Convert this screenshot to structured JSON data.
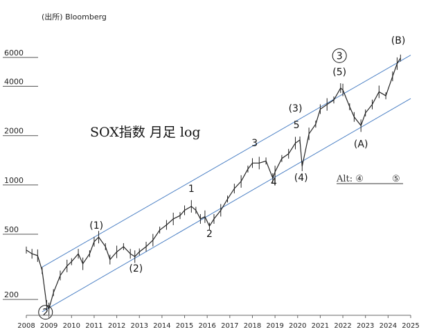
{
  "source": "(出所) Bloomberg",
  "chart_data": {
    "type": "line",
    "title": "SOX指数 月足 log",
    "y_scale": "log",
    "ylim": [
      160,
      7500
    ],
    "xlim": [
      2008.0,
      2025.0
    ],
    "y_ticks": [
      {
        "value": 200,
        "label": "200"
      },
      {
        "value": 500,
        "label": "500"
      },
      {
        "value": 1000,
        "label": "1000"
      },
      {
        "value": 2000,
        "label": "2000"
      },
      {
        "value": 4000,
        "label": "4000"
      },
      {
        "value": 6000,
        "label": "6000"
      }
    ],
    "x_ticks": [
      "2008",
      "2009",
      "2010",
      "2011",
      "2012",
      "2013",
      "2014",
      "2015",
      "2016",
      "2017",
      "2018",
      "2019",
      "2020",
      "2021",
      "2022",
      "2023",
      "2024",
      "2025"
    ],
    "series": [
      {
        "values": [
          [
            2008.0,
            400
          ],
          [
            2008.25,
            380
          ],
          [
            2008.5,
            370
          ],
          [
            2008.7,
            300
          ],
          [
            2008.9,
            185
          ],
          [
            2009.0,
            175
          ],
          [
            2009.2,
            220
          ],
          [
            2009.5,
            280
          ],
          [
            2009.8,
            320
          ],
          [
            2010.0,
            340
          ],
          [
            2010.3,
            380
          ],
          [
            2010.5,
            330
          ],
          [
            2010.8,
            380
          ],
          [
            2011.0,
            450
          ],
          [
            2011.2,
            480
          ],
          [
            2011.5,
            420
          ],
          [
            2011.7,
            350
          ],
          [
            2012.0,
            390
          ],
          [
            2012.3,
            420
          ],
          [
            2012.6,
            380
          ],
          [
            2012.8,
            365
          ],
          [
            2013.0,
            390
          ],
          [
            2013.3,
            420
          ],
          [
            2013.6,
            460
          ],
          [
            2013.9,
            530
          ],
          [
            2014.2,
            570
          ],
          [
            2014.5,
            620
          ],
          [
            2014.8,
            650
          ],
          [
            2015.0,
            700
          ],
          [
            2015.3,
            740
          ],
          [
            2015.5,
            700
          ],
          [
            2015.7,
            620
          ],
          [
            2015.9,
            640
          ],
          [
            2016.1,
            560
          ],
          [
            2016.3,
            620
          ],
          [
            2016.6,
            700
          ],
          [
            2016.9,
            820
          ],
          [
            2017.2,
            950
          ],
          [
            2017.5,
            1050
          ],
          [
            2017.8,
            1250
          ],
          [
            2018.0,
            1360
          ],
          [
            2018.3,
            1360
          ],
          [
            2018.6,
            1400
          ],
          [
            2018.9,
            1100
          ],
          [
            2019.0,
            1200
          ],
          [
            2019.3,
            1450
          ],
          [
            2019.6,
            1550
          ],
          [
            2019.9,
            1800
          ],
          [
            2020.1,
            1880
          ],
          [
            2020.2,
            1300
          ],
          [
            2020.5,
            2050
          ],
          [
            2020.8,
            2350
          ],
          [
            2021.0,
            2900
          ],
          [
            2021.3,
            3100
          ],
          [
            2021.6,
            3300
          ],
          [
            2021.9,
            3900
          ],
          [
            2022.0,
            3800
          ],
          [
            2022.3,
            3000
          ],
          [
            2022.5,
            2600
          ],
          [
            2022.8,
            2300
          ],
          [
            2023.0,
            2750
          ],
          [
            2023.3,
            3100
          ],
          [
            2023.6,
            3700
          ],
          [
            2023.9,
            3500
          ],
          [
            2024.2,
            4600
          ],
          [
            2024.4,
            5500
          ],
          [
            2024.55,
            5950
          ]
        ]
      }
    ],
    "channel_lines": [
      {
        "start": [
          2008.7,
          315
        ],
        "end": [
          2025.0,
          6200
        ]
      },
      {
        "start": [
          2008.7,
          168
        ],
        "end": [
          2025.0,
          3370
        ]
      }
    ],
    "annotations": [
      {
        "text": "(1)",
        "x": 2011.1,
        "y": 540
      },
      {
        "text": "(2)",
        "x": 2012.85,
        "y": 295
      },
      {
        "text": "1",
        "x": 2015.3,
        "y": 905
      },
      {
        "text": "2",
        "x": 2016.1,
        "y": 482
      },
      {
        "text": "3",
        "x": 2018.1,
        "y": 1720
      },
      {
        "text": "4",
        "x": 2018.95,
        "y": 995
      },
      {
        "text": "(3)",
        "x": 2019.9,
        "y": 2800
      },
      {
        "text": "5",
        "x": 2019.95,
        "y": 2220
      },
      {
        "text": "(4)",
        "x": 2020.15,
        "y": 1060
      },
      {
        "text": "(5)",
        "x": 2021.85,
        "y": 4680
      },
      {
        "text": "(A)",
        "x": 2022.8,
        "y": 1700
      },
      {
        "text": "(B)",
        "x": 2024.45,
        "y": 7280
      }
    ],
    "circled_labels": [
      {
        "text": "2",
        "x": 2008.85,
        "y": 167
      },
      {
        "text": "3",
        "x": 2021.85,
        "y": 6150
      }
    ],
    "alt_label": "Alt: ④ ⑤"
  }
}
